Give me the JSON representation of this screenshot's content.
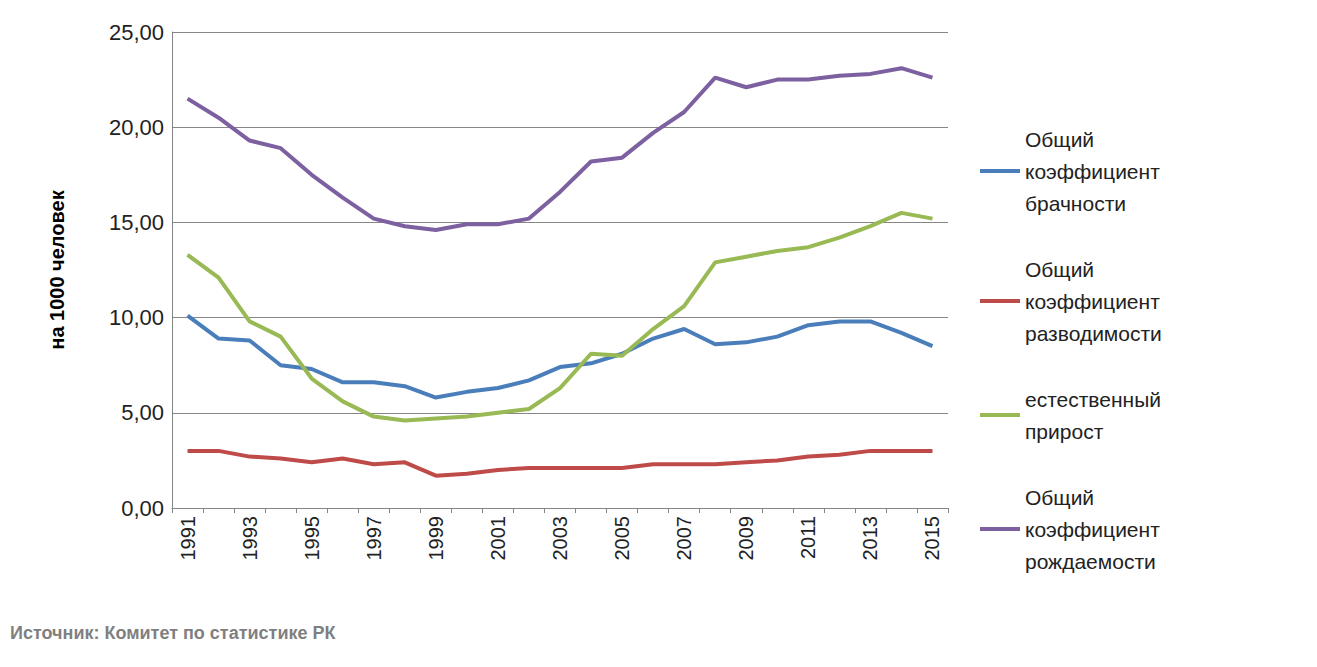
{
  "chart_data": {
    "type": "line",
    "ylabel": "на 1000 человек",
    "source": "Источник: Комитет по статистике РК",
    "categories": [
      "1991",
      null,
      "1993",
      null,
      "1995",
      null,
      "1997",
      null,
      "1999",
      null,
      "2001",
      null,
      "2003",
      null,
      "2005",
      null,
      "2007",
      null,
      "2009",
      null,
      "2011",
      null,
      "2013",
      null,
      "2015"
    ],
    "series": [
      {
        "name": "Общий коэффициент брачности",
        "color": "#4a7ebb",
        "values": [
          10.1,
          8.9,
          8.8,
          7.5,
          7.3,
          6.6,
          6.6,
          6.4,
          5.8,
          6.1,
          6.3,
          6.7,
          7.4,
          7.6,
          8.1,
          8.9,
          9.4,
          8.6,
          8.7,
          9.0,
          9.6,
          9.8,
          9.8,
          9.2,
          8.5
        ]
      },
      {
        "name": "Общий коэффициент разводимости",
        "color": "#be4b48",
        "values": [
          3.0,
          3.0,
          2.7,
          2.6,
          2.4,
          2.6,
          2.3,
          2.4,
          1.7,
          1.8,
          2.0,
          2.1,
          2.1,
          2.1,
          2.1,
          2.3,
          2.3,
          2.3,
          2.4,
          2.5,
          2.7,
          2.8,
          3.0,
          3.0,
          3.0
        ]
      },
      {
        "name": "естественный прирост",
        "color": "#98b954",
        "values": [
          13.3,
          12.1,
          9.8,
          9.0,
          6.8,
          5.6,
          4.8,
          4.6,
          4.7,
          4.8,
          5.0,
          5.2,
          6.3,
          8.1,
          8.0,
          9.4,
          10.6,
          12.9,
          13.2,
          13.5,
          13.7,
          14.2,
          14.8,
          15.5,
          15.2
        ]
      },
      {
        "name": "Общий коэффициент рождаемости",
        "color": "#7d60a0",
        "values": [
          21.5,
          20.5,
          19.3,
          18.9,
          17.5,
          16.3,
          15.2,
          14.8,
          14.6,
          14.9,
          14.9,
          15.2,
          16.6,
          18.2,
          18.4,
          19.7,
          20.8,
          22.6,
          22.1,
          22.5,
          22.5,
          22.7,
          22.8,
          23.1,
          22.6
        ]
      }
    ],
    "ylim": [
      0,
      25
    ],
    "yticks": [
      {
        "value": 0,
        "label": "0,00"
      },
      {
        "value": 5,
        "label": "5,00"
      },
      {
        "value": 10,
        "label": "10,00"
      },
      {
        "value": 15,
        "label": "15,00"
      },
      {
        "value": 20,
        "label": "20,00"
      },
      {
        "value": 25,
        "label": "25,00"
      }
    ],
    "grid": true,
    "legend": "right",
    "marker": "none"
  }
}
